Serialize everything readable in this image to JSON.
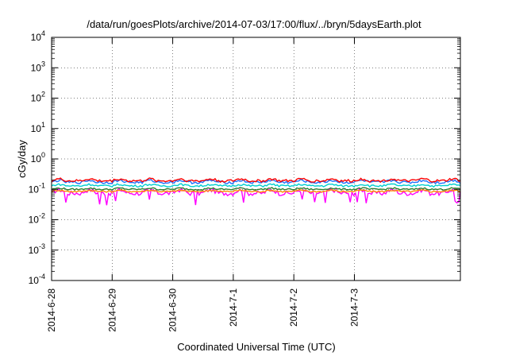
{
  "chart_data": {
    "type": "line",
    "title": "/data/run/goesPlots/archive/2014-07-03/17:00/flux/../bryn/5daysEarth.plot",
    "xlabel": "Coordinated Universal Time (UTC)",
    "ylabel": "cGy/day",
    "y_scale": "log",
    "ylim": [
      0.0001,
      10000
    ],
    "y_ticks": [
      {
        "value": 10000,
        "base": "10",
        "exp": "4"
      },
      {
        "value": 1000,
        "base": "10",
        "exp": "3"
      },
      {
        "value": 100,
        "base": "10",
        "exp": "2"
      },
      {
        "value": 10,
        "base": "10",
        "exp": "1"
      },
      {
        "value": 1,
        "base": "10",
        "exp": "0"
      },
      {
        "value": 0.1,
        "base": "10",
        "exp": "-1"
      },
      {
        "value": 0.01,
        "base": "10",
        "exp": "-2"
      },
      {
        "value": 0.001,
        "base": "10",
        "exp": "-3"
      },
      {
        "value": 0.0001,
        "base": "10",
        "exp": "-4"
      }
    ],
    "xlim_days": [
      0,
      6.75
    ],
    "x_ticks": [
      {
        "label": "2014-6-28",
        "day": 0
      },
      {
        "label": "2014-6-29",
        "day": 1
      },
      {
        "label": "2014-6-30",
        "day": 2
      },
      {
        "label": "2014-7-1",
        "day": 3
      },
      {
        "label": "2014-7-2",
        "day": 4
      },
      {
        "label": "2014-7-3",
        "day": 5
      }
    ],
    "grid": true,
    "legend": "none",
    "series": [
      {
        "color": "#ff00ff",
        "base": 0.075,
        "variability": 0.35,
        "dips": true
      },
      {
        "color": "#ff8c00",
        "base": 0.085,
        "variability": 0.12,
        "dips": false
      },
      {
        "color": "#2e7d32",
        "base": 0.1,
        "variability": 0.12,
        "dips": false
      },
      {
        "color": "#00cfcf",
        "base": 0.13,
        "variability": 0.15,
        "dips": false
      },
      {
        "color": "#1f6fff",
        "base": 0.17,
        "variability": 0.2,
        "dips": false
      },
      {
        "color": "#ff0000",
        "base": 0.19,
        "variability": 0.2,
        "dips": false
      }
    ]
  }
}
